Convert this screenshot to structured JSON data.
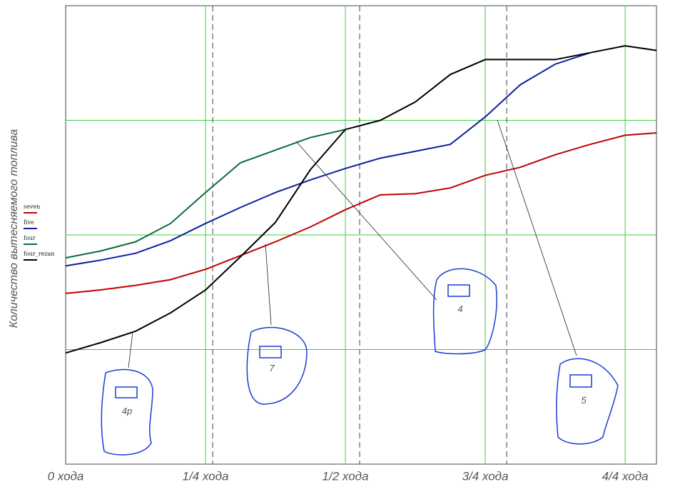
{
  "chart_data": {
    "type": "line",
    "y_label": "Количество вытесняемого топлива",
    "x": [
      0,
      0.0625,
      0.125,
      0.1875,
      0.25,
      0.3125,
      0.375,
      0.4375,
      0.5,
      0.5625,
      0.625,
      0.6875,
      0.75,
      0.8125,
      0.875,
      0.9375,
      1,
      1.056
    ],
    "series": [
      {
        "name": "seven",
        "color": "#c00000",
        "values": [
          1.49,
          1.52,
          1.56,
          1.61,
          1.7,
          1.82,
          1.94,
          2.07,
          2.22,
          2.35,
          2.36,
          2.41,
          2.52,
          2.59,
          2.7,
          2.79,
          2.87,
          2.89
        ]
      },
      {
        "name": "five",
        "color": "#0a1fa0",
        "values": [
          1.73,
          1.78,
          1.84,
          1.95,
          2.1,
          2.24,
          2.37,
          2.48,
          2.58,
          2.67,
          2.73,
          2.79,
          3.03,
          3.31,
          3.49,
          3.59,
          null,
          null
        ]
      },
      {
        "name": "four",
        "color": "#0b6b3a",
        "values": [
          1.8,
          1.86,
          1.94,
          2.1,
          2.37,
          2.63,
          2.74,
          2.85,
          2.92,
          null,
          null,
          null,
          null,
          null,
          null,
          null,
          null,
          null
        ]
      },
      {
        "name": "four_rezan",
        "color": "#000000",
        "values": [
          0.97,
          1.06,
          1.16,
          1.32,
          1.52,
          1.81,
          2.11,
          2.57,
          2.92,
          3.0,
          3.16,
          3.4,
          3.53,
          3.53,
          3.53,
          3.59,
          3.65,
          3.61
        ]
      }
    ],
    "xlim": [
      0,
      1.056
    ],
    "ylim": [
      0,
      4
    ],
    "xticks": [
      {
        "value": 0,
        "label": "0 хода"
      },
      {
        "value": 0.25,
        "label": "1/4 хода"
      },
      {
        "value": 0.5,
        "label": "1/2 хода"
      },
      {
        "value": 0.75,
        "label": "3/4 хода"
      },
      {
        "value": 1,
        "label": "4/4 хода"
      }
    ],
    "ygrid": [
      1,
      2,
      3
    ],
    "dashed_x": [
      0.2628,
      0.5255,
      0.7883
    ],
    "grid_color": "#3ccf3c",
    "annotations": [
      {
        "text": "4р"
      },
      {
        "text": "7"
      },
      {
        "text": "4"
      },
      {
        "text": "5"
      }
    ]
  }
}
